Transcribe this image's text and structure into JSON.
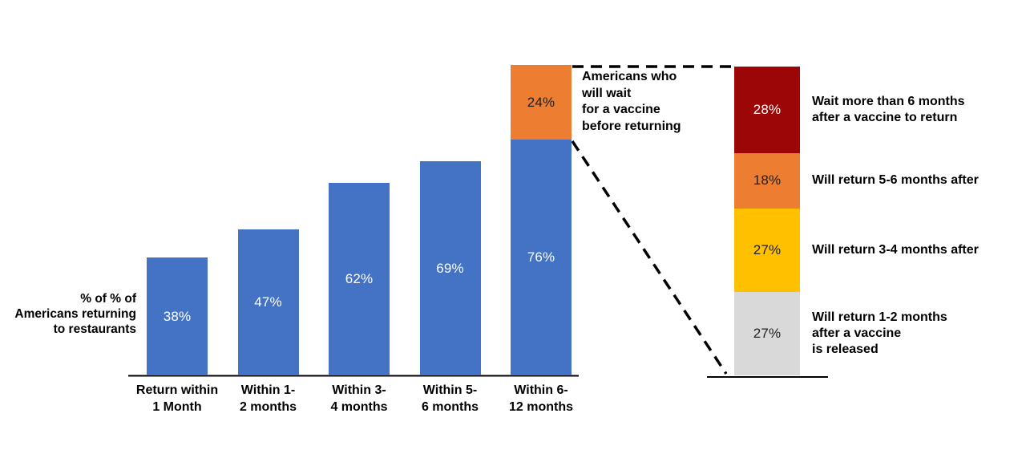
{
  "chart_data": {
    "type": "bar",
    "title": "",
    "left_chart": {
      "axis_title": "% of % of\nAmericans returning\nto restaurants",
      "unit": "percent",
      "ylim": [
        0,
        100
      ],
      "bars": [
        {
          "category": "Return within\n1 Month",
          "value": 38,
          "label": "38%"
        },
        {
          "category": "Within 1-\n2 months",
          "value": 47,
          "label": "47%"
        },
        {
          "category": "Within 3-\n4 months",
          "value": 62,
          "label": "62%"
        },
        {
          "category": "Within 5-\n6 months",
          "value": 69,
          "label": "69%"
        },
        {
          "category": "Within 6-\n12 months",
          "value": 76,
          "label": "76%"
        }
      ],
      "wait_segment": {
        "stacked_on_category": "Within 6-\n12 months",
        "value": 24,
        "label": "24%"
      }
    },
    "annotation": "Americans who\nwill wait\nfor a vaccine\nbefore returning",
    "right_chart": {
      "total": 100,
      "segments": [
        {
          "value": 28,
          "pct_label": "28%",
          "description": "Wait more than 6 months\nafter a vaccine to return",
          "color": "#9C0606",
          "text_color": "#FFFFFF"
        },
        {
          "value": 18,
          "pct_label": "18%",
          "description": "Will return 5-6 months after",
          "color": "#ED7D31",
          "text_color": "#1F1F1F"
        },
        {
          "value": 27,
          "pct_label": "27%",
          "description": "Will return 3-4 months after",
          "color": "#FFC000",
          "text_color": "#1F1F1F"
        },
        {
          "value": 27,
          "pct_label": "27%",
          "description": "Will return 1-2 months\nafter a vaccine\nis released",
          "color": "#D9D9D9",
          "text_color": "#1F1F1F"
        }
      ]
    }
  },
  "colors": {
    "blue": "#4472C4",
    "orange": "#ED7D31",
    "dark_red": "#9C0606",
    "yellow": "#FFC000",
    "gray": "#D9D9D9",
    "label_on_dark": "#FFFFFF",
    "label_on_light": "#1F1F1F",
    "axis_line": "#000000",
    "connector_line": "#000000",
    "background": "#FFFFFF"
  }
}
